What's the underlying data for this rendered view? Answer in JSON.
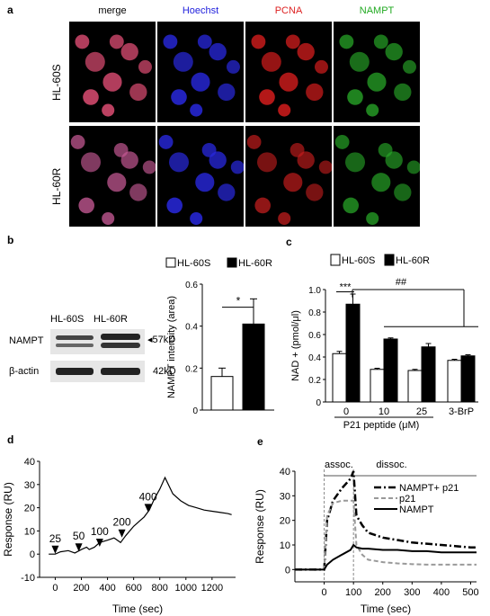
{
  "panel_a": {
    "label": "a",
    "channels": [
      "merge",
      "Hoechst",
      "PCNA",
      "NAMPT"
    ],
    "channel_colors": [
      "#000000",
      "#2222dd",
      "#dd2222",
      "#22aa22"
    ],
    "rows": [
      "HL-60S",
      "HL-60R"
    ]
  },
  "panel_b": {
    "label": "b",
    "blot": {
      "lanes": [
        "HL-60S",
        "HL-60R"
      ],
      "rows": [
        "NAMPT",
        "β-actin"
      ],
      "sizes": [
        "57kD",
        "42kD"
      ]
    }
  },
  "panel_c": {
    "label": "c"
  },
  "panel_d": {
    "label": "d"
  },
  "panel_e": {
    "label": "e"
  },
  "chart_data": [
    {
      "panel": "b",
      "type": "bar",
      "categories": [
        "HL-60S",
        "HL-60R"
      ],
      "values": [
        0.16,
        0.41
      ],
      "errors": [
        0.04,
        0.12
      ],
      "legend": [
        "HL-60S",
        "HL-60R"
      ],
      "fills": [
        "#ffffff",
        "#000000"
      ],
      "ylabel": "NAMPT intensity (area)",
      "ylim": [
        0,
        0.6
      ],
      "yticks": [
        "0",
        "0.2",
        "0.4",
        "0.6"
      ],
      "annotations": [
        "*"
      ]
    },
    {
      "panel": "c",
      "type": "bar",
      "legend": [
        "HL-60S",
        "HL-60R"
      ],
      "groups": [
        "0",
        "10",
        "25",
        "3-BrP"
      ],
      "series": [
        {
          "name": "HL-60S",
          "values": [
            0.43,
            0.29,
            0.28,
            0.37
          ],
          "errors": [
            0.02,
            0.01,
            0.01,
            0.01
          ],
          "color": "#ffffff"
        },
        {
          "name": "HL-60R",
          "values": [
            0.87,
            0.56,
            0.49,
            0.41
          ],
          "errors": [
            0.09,
            0.01,
            0.03,
            0.01
          ],
          "color": "#000000"
        }
      ],
      "ylabel": "NAD + (pmol/μl)",
      "xlabel": "P21 peptide (μM)",
      "ylim": [
        0,
        1.0
      ],
      "yticks": [
        "0",
        "0.2",
        "0.4",
        "0.6",
        "0.8",
        "1.0"
      ],
      "annotations": [
        "***",
        "##"
      ]
    },
    {
      "panel": "d",
      "type": "line",
      "x": [
        -50,
        0,
        40,
        100,
        150,
        200,
        240,
        260,
        300,
        340,
        400,
        450,
        500,
        540,
        600,
        640,
        680,
        720,
        760,
        800,
        840,
        900,
        960,
        1020,
        1080,
        1140,
        1200,
        1260,
        1320,
        1350
      ],
      "y": [
        0,
        0,
        1,
        1.5,
        0.5,
        2,
        3,
        2,
        3,
        5,
        6,
        7,
        5,
        8,
        12,
        14,
        16,
        19,
        24,
        28,
        33,
        26,
        23,
        21,
        20,
        19,
        18.5,
        18,
        17.5,
        17
      ],
      "xlabel": "Time (sec)",
      "ylabel": "Response (RU)",
      "ylim": [
        -10,
        40
      ],
      "xticks": [
        "0",
        "200",
        "400",
        "600",
        "800",
        "1000",
        "1200"
      ],
      "yticks": [
        "-10",
        "0",
        "10",
        "20",
        "30",
        "40"
      ],
      "annotations": [
        "25",
        "50",
        "100",
        "200",
        "400"
      ]
    },
    {
      "panel": "e",
      "type": "line",
      "x": [
        -100,
        -10,
        0,
        10,
        30,
        60,
        90,
        100,
        110,
        130,
        150,
        200,
        250,
        300,
        350,
        400,
        450,
        500,
        520
      ],
      "series": [
        {
          "name": "NAMPT+ p21",
          "values": [
            0,
            0,
            0,
            20,
            28,
            33,
            37,
            40,
            22,
            18,
            15,
            13,
            12,
            11,
            10.5,
            10,
            9.5,
            9,
            9
          ]
        },
        {
          "name": "p21",
          "values": [
            0,
            0,
            0,
            22,
            27,
            28,
            28,
            28,
            10,
            6,
            4,
            3,
            2.5,
            2.2,
            2,
            2,
            2,
            2,
            2
          ]
        },
        {
          "name": "NAMPT",
          "values": [
            0,
            0,
            0,
            2,
            4,
            6,
            8,
            10,
            9,
            8.5,
            8.5,
            8,
            8,
            7.5,
            7.5,
            7,
            7,
            7,
            7
          ]
        }
      ],
      "xlabel": "Time (sec)",
      "ylabel": "Response (RU)",
      "xlim": [
        -100,
        520
      ],
      "ylim": [
        -5,
        40
      ],
      "xticks": [
        "0",
        "100",
        "200",
        "300",
        "400",
        "500"
      ],
      "yticks": [
        "0",
        "10",
        "20",
        "30",
        "40"
      ],
      "annotations": [
        "assoc.",
        "dissoc."
      ]
    }
  ]
}
